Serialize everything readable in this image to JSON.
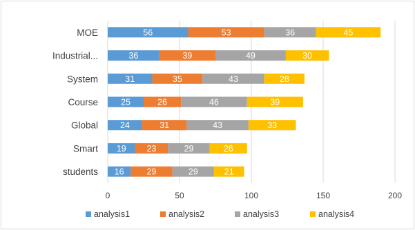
{
  "chart_data": {
    "type": "bar",
    "orientation": "horizontal",
    "stacked": true,
    "categories": [
      "MOE",
      "Industrial...",
      "System",
      "Course",
      "Global",
      "Smart",
      "students"
    ],
    "series": [
      {
        "name": "analysis1",
        "color": "#5b9bd5",
        "values": [
          56,
          36,
          31,
          25,
          24,
          19,
          16
        ]
      },
      {
        "name": "analysis2",
        "color": "#ed7d31",
        "values": [
          53,
          39,
          35,
          26,
          31,
          23,
          29
        ]
      },
      {
        "name": "analysis3",
        "color": "#a5a5a5",
        "values": [
          36,
          49,
          43,
          46,
          43,
          29,
          29
        ]
      },
      {
        "name": "analysis4",
        "color": "#ffc000",
        "values": [
          45,
          30,
          28,
          39,
          33,
          26,
          21
        ]
      }
    ],
    "xlim": [
      0,
      200
    ],
    "xticks": [
      0,
      50,
      100,
      150,
      200
    ],
    "grid": "vertical",
    "legend_position": "bottom"
  }
}
